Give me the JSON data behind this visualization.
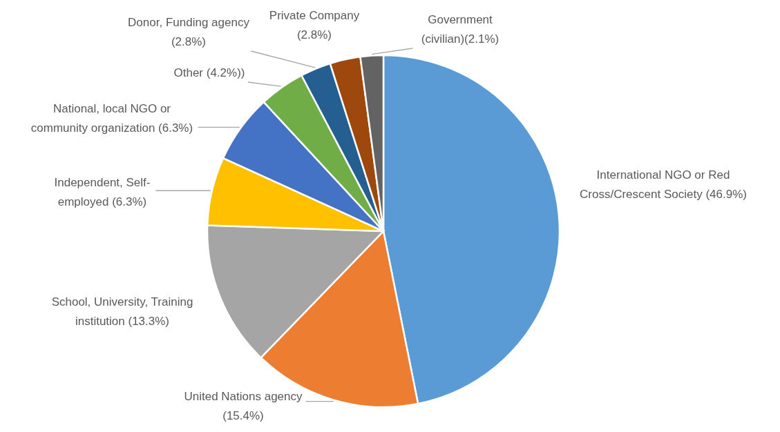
{
  "chart_data": {
    "type": "pie",
    "categories": [
      "International NGO or Red Cross/Crescent Society (46.9%)",
      "United Nations agency (15.4%)",
      "School, University, Training institution (13.3%)",
      "Independent, Self-employed (6.3%)",
      "National, local NGO or community organization (6.3%)",
      "Other (4.2%))",
      "Donor, Funding agency (2.8%)",
      "Private Company (2.8%)",
      "Government (civilian)(2.1%)"
    ],
    "values": [
      46.9,
      15.4,
      13.3,
      6.3,
      6.3,
      4.2,
      2.8,
      2.8,
      2.1
    ],
    "colors": [
      "#5b9bd5",
      "#ed7d31",
      "#a5a5a5",
      "#ffc000",
      "#4472c4",
      "#70ad47",
      "#255e91",
      "#9e480e",
      "#636363"
    ],
    "legend": false
  }
}
